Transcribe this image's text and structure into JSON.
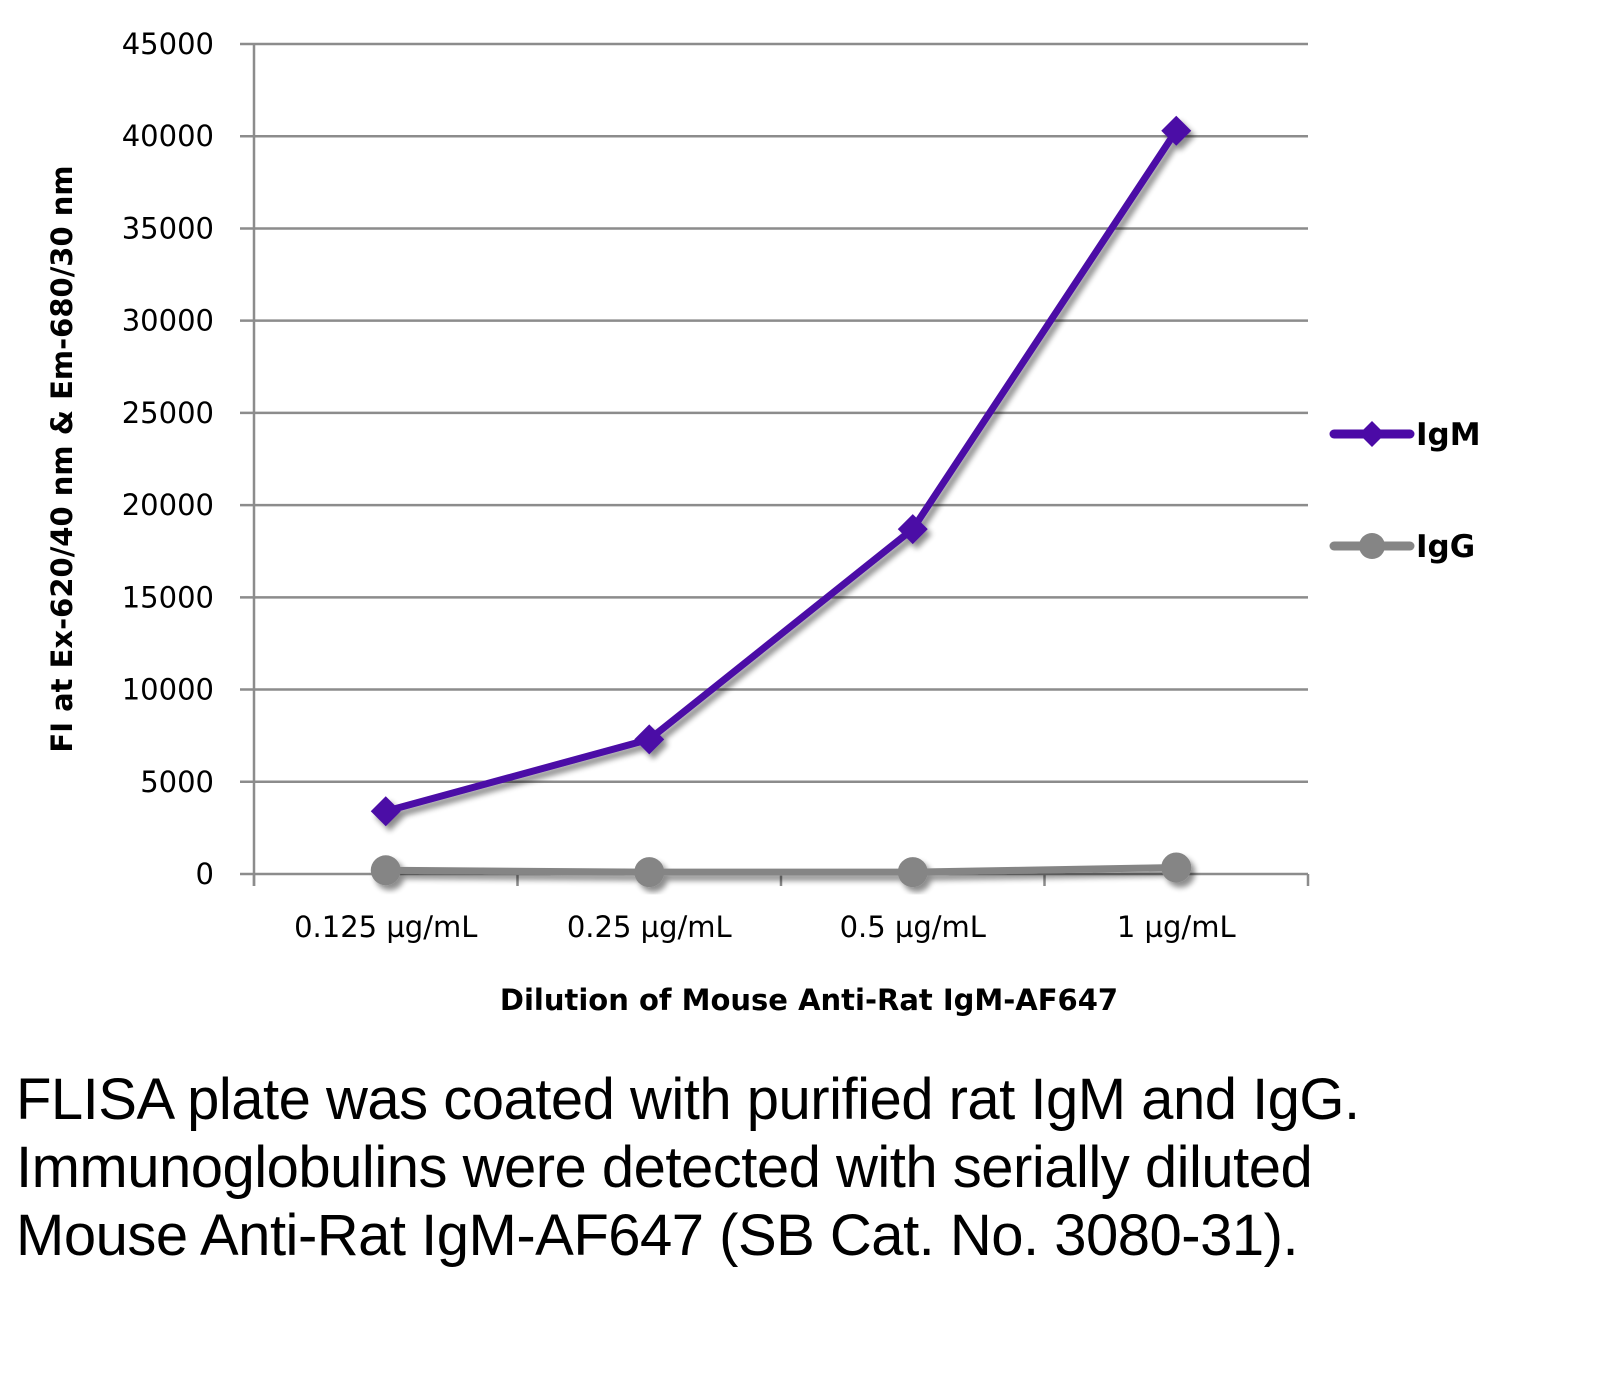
{
  "chart_data": {
    "type": "line",
    "title": "",
    "xlabel": "Dilution of Mouse Anti-Rat IgM-AF647",
    "ylabel": "FI at Ex-620/40 nm & Em-680/30 nm",
    "categories": [
      "0.125 µg/mL",
      "0.25 µg/mL",
      "0.5 µg/mL",
      "1 µg/mL"
    ],
    "ylim": [
      0,
      45000
    ],
    "yticks": [
      0,
      5000,
      10000,
      15000,
      20000,
      25000,
      30000,
      35000,
      40000,
      45000
    ],
    "ytick_labels": [
      "0",
      "5000",
      "10000",
      "15000",
      "20000",
      "25000",
      "30000",
      "35000",
      "40000",
      "45000"
    ],
    "grid": true,
    "legend_position": "right",
    "series": [
      {
        "name": "IgM",
        "values": [
          3400,
          7300,
          18700,
          40300
        ],
        "color": "#4b0aa6",
        "marker": "diamond"
      },
      {
        "name": "IgG",
        "values": [
          200,
          100,
          100,
          350
        ],
        "color": "#858585",
        "marker": "circle"
      }
    ]
  },
  "caption": {
    "text": "FLISA plate was coated with purified rat IgM and IgG.  Immunoglobulins were detected with serially diluted Mouse Anti-Rat IgM-AF647 (SB Cat. No. 3080-31)."
  },
  "colors": {
    "gridline": "#8c8c8c",
    "axis": "#8c8c8c",
    "igm": "#4b0aa6",
    "igg": "#858585"
  }
}
